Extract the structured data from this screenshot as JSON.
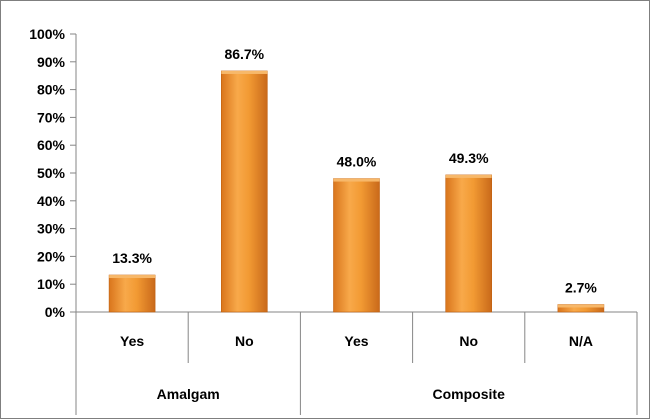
{
  "chart_data": {
    "type": "bar",
    "groups": [
      {
        "label": "Amalgam",
        "categories": [
          "Yes",
          "No"
        ]
      },
      {
        "label": "Composite",
        "categories": [
          "Yes",
          "No",
          "N/A"
        ]
      }
    ],
    "categories": [
      "Yes",
      "No",
      "Yes",
      "No",
      "N/A"
    ],
    "values": [
      13.3,
      86.7,
      48.0,
      49.3,
      2.7
    ],
    "data_labels": [
      "13.3%",
      "86.7%",
      "48.0%",
      "49.3%",
      "2.7%"
    ],
    "y_ticks": [
      "0%",
      "10%",
      "20%",
      "30%",
      "40%",
      "50%",
      "60%",
      "70%",
      "80%",
      "90%",
      "100%"
    ],
    "ylim": [
      0,
      100
    ],
    "grid": false,
    "bar_color": "#f0962d"
  }
}
